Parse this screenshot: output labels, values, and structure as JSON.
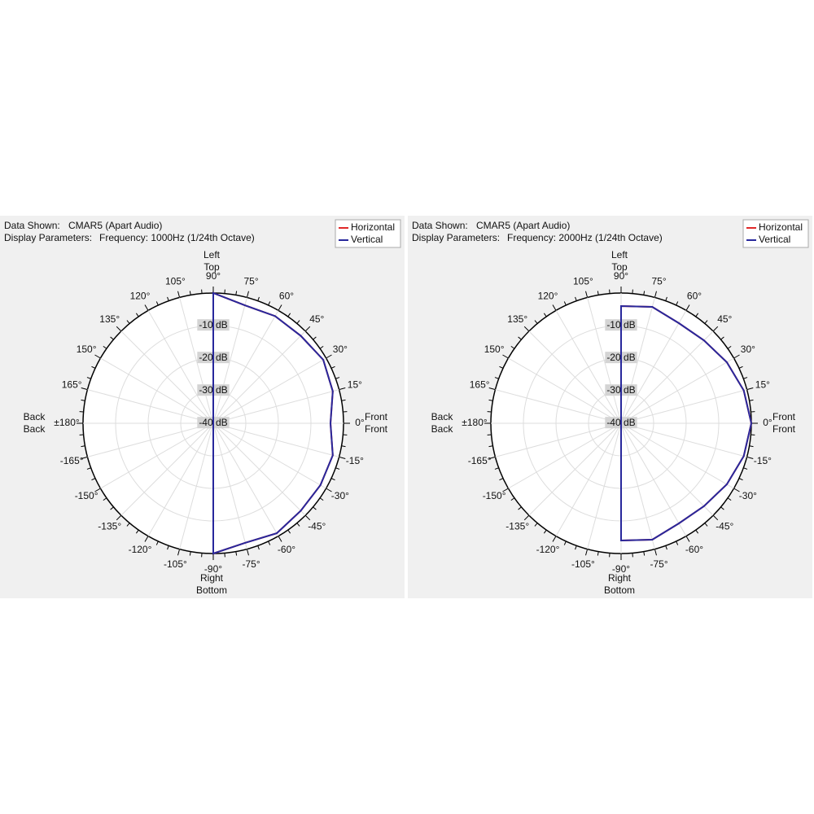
{
  "chart_data": [
    {
      "type": "polar",
      "data_shown_label": "Data Shown:",
      "data_shown": "CMAR5 (Apart Audio)",
      "parameters_label": "Display Parameters:",
      "parameters": "Frequency: 1000Hz (1/24th Octave)",
      "directions": [
        {
          "position": "top",
          "labels": [
            "Left",
            "Top"
          ]
        },
        {
          "position": "bottom",
          "labels": [
            "Right",
            "Bottom"
          ]
        },
        {
          "position": "front",
          "labels": [
            "Front",
            "Front"
          ]
        },
        {
          "position": "back",
          "labels": [
            "Back",
            "Back"
          ]
        }
      ],
      "rlim": [
        -40,
        0
      ],
      "rticks": [
        {
          "value": -10,
          "label": "-10 dB"
        },
        {
          "value": -20,
          "label": "-20 dB"
        },
        {
          "value": -30,
          "label": "-30 dB"
        },
        {
          "value": -40,
          "label": "-40 dB"
        }
      ],
      "thetaticks": [
        {
          "value": 0,
          "label": "0°"
        },
        {
          "value": 15,
          "label": "15°"
        },
        {
          "value": 30,
          "label": "30°"
        },
        {
          "value": 45,
          "label": "45°"
        },
        {
          "value": 60,
          "label": "60°"
        },
        {
          "value": 75,
          "label": "75°"
        },
        {
          "value": 90,
          "label": "90°"
        },
        {
          "value": 105,
          "label": "105°"
        },
        {
          "value": 120,
          "label": "120°"
        },
        {
          "value": 135,
          "label": "135°"
        },
        {
          "value": 150,
          "label": "150°"
        },
        {
          "value": 165,
          "label": "165°"
        },
        {
          "value": 180,
          "label": "±180°"
        },
        {
          "value": -165,
          "label": "-165°"
        },
        {
          "value": -150,
          "label": "-150°"
        },
        {
          "value": -135,
          "label": "-135°"
        },
        {
          "value": -120,
          "label": "-120°"
        },
        {
          "value": -105,
          "label": "-105°"
        },
        {
          "value": -90,
          "label": "-90°"
        },
        {
          "value": -75,
          "label": "-75°"
        },
        {
          "value": -60,
          "label": "-60°"
        },
        {
          "value": -45,
          "label": "-45°"
        },
        {
          "value": -30,
          "label": "-30°"
        },
        {
          "value": -15,
          "label": "-15°"
        }
      ],
      "theta": [
        -180,
        -165,
        -150,
        -135,
        -120,
        -105,
        -90,
        -75,
        -60,
        -45,
        -30,
        -15,
        0,
        15,
        30,
        45,
        60,
        75,
        90,
        105,
        120,
        135,
        150,
        165,
        180
      ],
      "series": [
        {
          "name": "Horizontal",
          "color": "#e02828",
          "values": [
            -40,
            -40,
            -40,
            -40,
            -40,
            -40,
            0,
            -2,
            -1,
            -2,
            -2,
            -2,
            -4,
            -2,
            -1,
            -2,
            -2,
            -2.5,
            0,
            -40,
            -40,
            -40,
            -40,
            -40,
            -40
          ]
        },
        {
          "name": "Vertical",
          "color": "#28289c",
          "values": [
            -40,
            -40,
            -40,
            -40,
            -40,
            -40,
            0,
            -2,
            -1,
            -2,
            -2,
            -2,
            -4,
            -2,
            -1,
            -2,
            -2,
            -2.5,
            0,
            -40,
            -40,
            -40,
            -40,
            -40,
            -40
          ]
        }
      ]
    },
    {
      "type": "polar",
      "data_shown_label": "Data Shown:",
      "data_shown": "CMAR5 (Apart Audio)",
      "parameters_label": "Display Parameters:",
      "parameters": "Frequency: 2000Hz (1/24th Octave)",
      "directions": [
        {
          "position": "top",
          "labels": [
            "Left",
            "Top"
          ]
        },
        {
          "position": "bottom",
          "labels": [
            "Right",
            "Bottom"
          ]
        },
        {
          "position": "front",
          "labels": [
            "Front",
            "Front"
          ]
        },
        {
          "position": "back",
          "labels": [
            "Back",
            "Back"
          ]
        }
      ],
      "rlim": [
        -40,
        0
      ],
      "rticks": [
        {
          "value": -10,
          "label": "-10 dB"
        },
        {
          "value": -20,
          "label": "-20 dB"
        },
        {
          "value": -30,
          "label": "-30 dB"
        },
        {
          "value": -40,
          "label": "-40 dB"
        }
      ],
      "thetaticks": [
        {
          "value": 0,
          "label": "0°"
        },
        {
          "value": 15,
          "label": "15°"
        },
        {
          "value": 30,
          "label": "30°"
        },
        {
          "value": 45,
          "label": "45°"
        },
        {
          "value": 60,
          "label": "60°"
        },
        {
          "value": 75,
          "label": "75°"
        },
        {
          "value": 90,
          "label": "90°"
        },
        {
          "value": 105,
          "label": "105°"
        },
        {
          "value": 120,
          "label": "120°"
        },
        {
          "value": 135,
          "label": "135°"
        },
        {
          "value": 150,
          "label": "150°"
        },
        {
          "value": 165,
          "label": "165°"
        },
        {
          "value": 180,
          "label": "±180°"
        },
        {
          "value": -165,
          "label": "-165°"
        },
        {
          "value": -150,
          "label": "-150°"
        },
        {
          "value": -135,
          "label": "-135°"
        },
        {
          "value": -120,
          "label": "-120°"
        },
        {
          "value": -105,
          "label": "-105°"
        },
        {
          "value": -90,
          "label": "-90°"
        },
        {
          "value": -75,
          "label": "-75°"
        },
        {
          "value": -60,
          "label": "-60°"
        },
        {
          "value": -45,
          "label": "-45°"
        },
        {
          "value": -30,
          "label": "-30°"
        },
        {
          "value": -15,
          "label": "-15°"
        }
      ],
      "theta": [
        -180,
        -165,
        -150,
        -135,
        -120,
        -105,
        -90,
        -75,
        -60,
        -45,
        -30,
        -15,
        0,
        15,
        30,
        45,
        60,
        75,
        90,
        105,
        120,
        135,
        150,
        165,
        180
      ],
      "series": [
        {
          "name": "Horizontal",
          "color": "#e02828",
          "values": [
            -40,
            -40,
            -40,
            -40,
            -40,
            -40,
            -4,
            -3,
            -4.5,
            -4,
            -2.5,
            -1,
            0,
            -1,
            -2.5,
            -4,
            -4.5,
            -3,
            -4,
            -40,
            -40,
            -40,
            -40,
            -40,
            -40
          ]
        },
        {
          "name": "Vertical",
          "color": "#28289c",
          "values": [
            -40,
            -40,
            -40,
            -40,
            -40,
            -40,
            -4,
            -3,
            -4.5,
            -4,
            -2.5,
            -1,
            0,
            -1,
            -2.5,
            -4,
            -4.5,
            -3,
            -4,
            -40,
            -40,
            -40,
            -40,
            -40,
            -40
          ]
        }
      ]
    }
  ]
}
